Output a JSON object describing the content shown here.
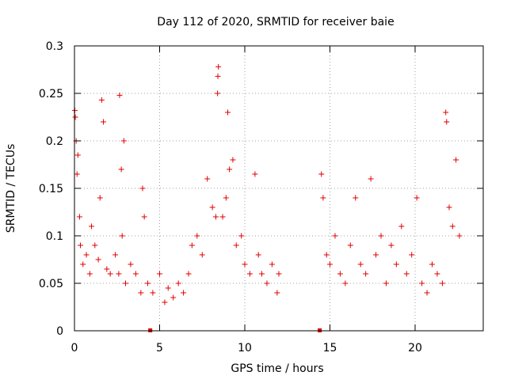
{
  "chart_data": {
    "type": "scatter",
    "title": "Day 112 of 2020, SRMTID for receiver baie",
    "xlabel": "GPS time / hours",
    "ylabel": "SRMTID / TECUs",
    "xlim": [
      0,
      24
    ],
    "ylim": [
      0,
      0.3
    ],
    "xticks": [
      0,
      5,
      10,
      15,
      20
    ],
    "xtick_labels": [
      "0",
      "5",
      "10",
      "15",
      "20"
    ],
    "yticks": [
      0,
      0.05,
      0.1,
      0.15,
      0.2,
      0.25,
      0.3
    ],
    "ytick_labels": [
      "0",
      "0.05",
      "0.1",
      "0.15",
      "0.2",
      "0.25",
      "0.3"
    ],
    "grid": true,
    "marker": "plus",
    "color": "#e00000",
    "gap_markers": [
      {
        "x": 4.45,
        "y": 0.0
      },
      {
        "x": 14.4,
        "y": 0.0
      }
    ],
    "series": [
      {
        "name": "SRMTID",
        "sampled_points": [
          [
            0.02,
            0.232
          ],
          [
            0.05,
            0.225
          ],
          [
            0.1,
            0.2
          ],
          [
            0.15,
            0.165
          ],
          [
            0.2,
            0.185
          ],
          [
            0.3,
            0.12
          ],
          [
            0.35,
            0.09
          ],
          [
            0.5,
            0.07
          ],
          [
            0.7,
            0.08
          ],
          [
            0.9,
            0.06
          ],
          [
            1.0,
            0.11
          ],
          [
            1.2,
            0.09
          ],
          [
            1.4,
            0.075
          ],
          [
            1.5,
            0.14
          ],
          [
            1.6,
            0.243
          ],
          [
            1.7,
            0.22
          ],
          [
            1.9,
            0.065
          ],
          [
            2.1,
            0.06
          ],
          [
            2.4,
            0.08
          ],
          [
            2.6,
            0.06
          ],
          [
            2.8,
            0.1
          ],
          [
            2.65,
            0.248
          ],
          [
            2.9,
            0.2
          ],
          [
            2.75,
            0.17
          ],
          [
            3.0,
            0.05
          ],
          [
            3.3,
            0.07
          ],
          [
            3.6,
            0.06
          ],
          [
            3.9,
            0.04
          ],
          [
            4.0,
            0.15
          ],
          [
            4.1,
            0.12
          ],
          [
            4.3,
            0.05
          ],
          [
            4.6,
            0.04
          ],
          [
            5.0,
            0.06
          ],
          [
            5.3,
            0.03
          ],
          [
            5.5,
            0.045
          ],
          [
            5.8,
            0.035
          ],
          [
            6.1,
            0.05
          ],
          [
            6.4,
            0.04
          ],
          [
            6.7,
            0.06
          ],
          [
            6.9,
            0.09
          ],
          [
            7.2,
            0.1
          ],
          [
            7.5,
            0.08
          ],
          [
            7.8,
            0.16
          ],
          [
            8.1,
            0.13
          ],
          [
            8.3,
            0.12
          ],
          [
            8.4,
            0.25
          ],
          [
            8.45,
            0.278
          ],
          [
            8.42,
            0.268
          ],
          [
            8.7,
            0.12
          ],
          [
            8.9,
            0.14
          ],
          [
            9.0,
            0.23
          ],
          [
            9.1,
            0.17
          ],
          [
            9.3,
            0.18
          ],
          [
            9.5,
            0.09
          ],
          [
            9.8,
            0.1
          ],
          [
            10.0,
            0.07
          ],
          [
            10.3,
            0.06
          ],
          [
            10.6,
            0.165
          ],
          [
            10.8,
            0.08
          ],
          [
            11.0,
            0.06
          ],
          [
            11.3,
            0.05
          ],
          [
            11.6,
            0.07
          ],
          [
            11.9,
            0.04
          ],
          [
            12.0,
            0.06
          ],
          [
            14.5,
            0.165
          ],
          [
            14.6,
            0.14
          ],
          [
            14.8,
            0.08
          ],
          [
            15.0,
            0.07
          ],
          [
            15.3,
            0.1
          ],
          [
            15.6,
            0.06
          ],
          [
            15.9,
            0.05
          ],
          [
            16.2,
            0.09
          ],
          [
            16.5,
            0.14
          ],
          [
            16.8,
            0.07
          ],
          [
            17.1,
            0.06
          ],
          [
            17.4,
            0.16
          ],
          [
            17.7,
            0.08
          ],
          [
            18.0,
            0.1
          ],
          [
            18.3,
            0.05
          ],
          [
            18.6,
            0.09
          ],
          [
            18.9,
            0.07
          ],
          [
            19.2,
            0.11
          ],
          [
            19.5,
            0.06
          ],
          [
            19.8,
            0.08
          ],
          [
            20.1,
            0.14
          ],
          [
            20.4,
            0.05
          ],
          [
            20.7,
            0.04
          ],
          [
            21.0,
            0.07
          ],
          [
            21.3,
            0.06
          ],
          [
            21.6,
            0.05
          ],
          [
            21.8,
            0.23
          ],
          [
            21.85,
            0.22
          ],
          [
            22.0,
            0.13
          ],
          [
            22.2,
            0.11
          ],
          [
            22.4,
            0.18
          ],
          [
            22.6,
            0.1
          ]
        ]
      }
    ]
  }
}
